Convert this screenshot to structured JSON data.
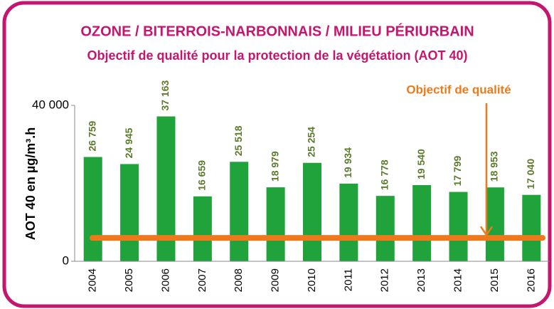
{
  "chart_data": {
    "type": "bar",
    "title": "OZONE / BITERROIS-NARBONNAIS / MILIEU PÉRIURBAIN",
    "subtitle": "Objectif de qualité pour la protection de la végétation (AOT 40)",
    "y_label": "AOT 40 en µg/m³.h",
    "categories": [
      "2004",
      "2005",
      "2006",
      "2007",
      "2008",
      "2009",
      "2010",
      "2011",
      "2012",
      "2013",
      "2014",
      "2015",
      "2016"
    ],
    "values": [
      26759,
      24945,
      37163,
      16659,
      25518,
      18979,
      25254,
      19934,
      16778,
      19540,
      17799,
      18953,
      17040
    ],
    "value_labels": [
      "26 759",
      "24 945",
      "37 163",
      "16 659",
      "25 518",
      "18 979",
      "25 254",
      "19 934",
      "16 778",
      "19 540",
      "17 799",
      "18 953",
      "17 040"
    ],
    "color": "#1fa33a",
    "label_color": "#5b7a2b",
    "ylim": [
      0,
      40000
    ],
    "yticks": [
      0,
      {
        "value": 40000,
        "label": "40 000"
      }
    ],
    "objective": {
      "label": "Objectif de qualité",
      "value": 6000,
      "color": "#ec7a1c"
    }
  }
}
